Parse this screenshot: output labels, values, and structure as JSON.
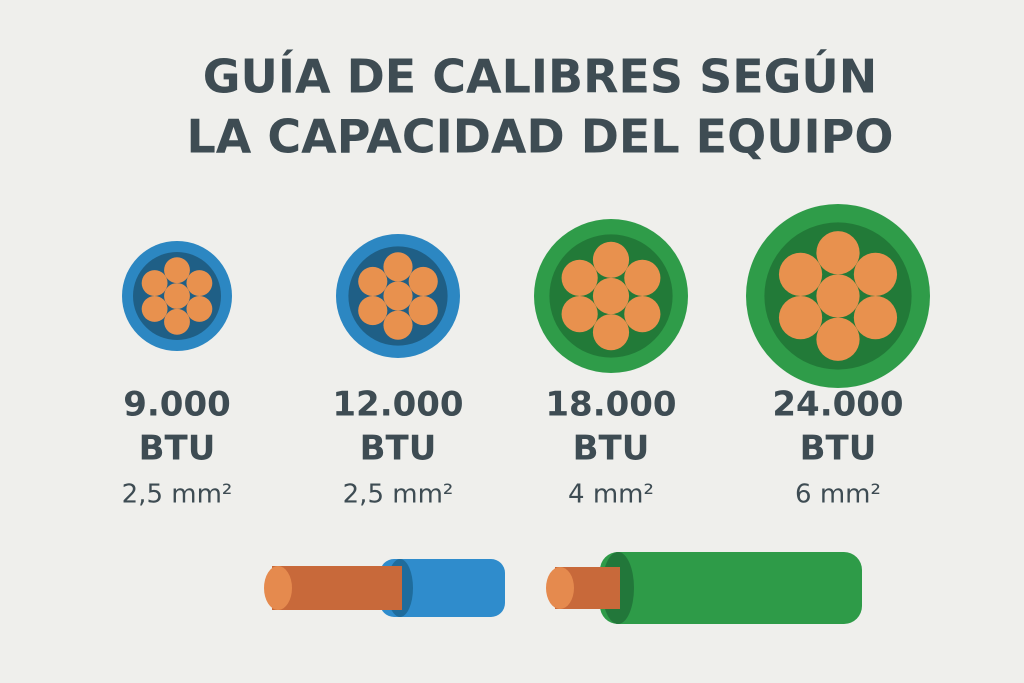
{
  "title": {
    "lines": [
      "GUÍA DE CALIBRES SEGÚN",
      "LA CAPACIDAD DEL EQUIPO"
    ]
  },
  "items": [
    {
      "capacity": "9.000",
      "unit": "BTU",
      "gauge": "2,5 mm²"
    },
    {
      "capacity": "12.000",
      "unit": "BTU",
      "gauge": "2,5 mm²"
    },
    {
      "capacity": "18.000",
      "unit": "BTU",
      "gauge": "4 mm²"
    },
    {
      "capacity": "24.000",
      "unit": "BTU",
      "gauge": "6 mm²"
    }
  ]
}
